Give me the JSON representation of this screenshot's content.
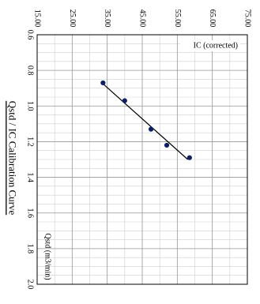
{
  "chart_data": {
    "type": "scatter",
    "title": "Qstd / IC Calibration Curve",
    "xlabel": "Qstd (m3/min)",
    "ylabel": "IC (corrected)",
    "xlim": [
      0.6,
      2.0
    ],
    "ylim": [
      15.0,
      75.0
    ],
    "x_ticks": [
      "0.6",
      "0.8",
      "1.0",
      "1.2",
      "1.4",
      "1.6",
      "1.8",
      "2.0"
    ],
    "y_ticks": [
      "15.00",
      "25.00",
      "35.00",
      "45.00",
      "55.00",
      "65.00",
      "75.00"
    ],
    "grid": true,
    "series": [
      {
        "x": [
          0.87,
          0.97,
          1.13,
          1.22,
          1.29
        ],
        "y": [
          33.8,
          40.0,
          47.5,
          52.0,
          58.5
        ],
        "color": "#0a1f6b"
      }
    ],
    "trendline": {
      "x": [
        0.87,
        1.3
      ],
      "y": [
        33.5,
        58.0
      ],
      "color": "#000000"
    }
  }
}
